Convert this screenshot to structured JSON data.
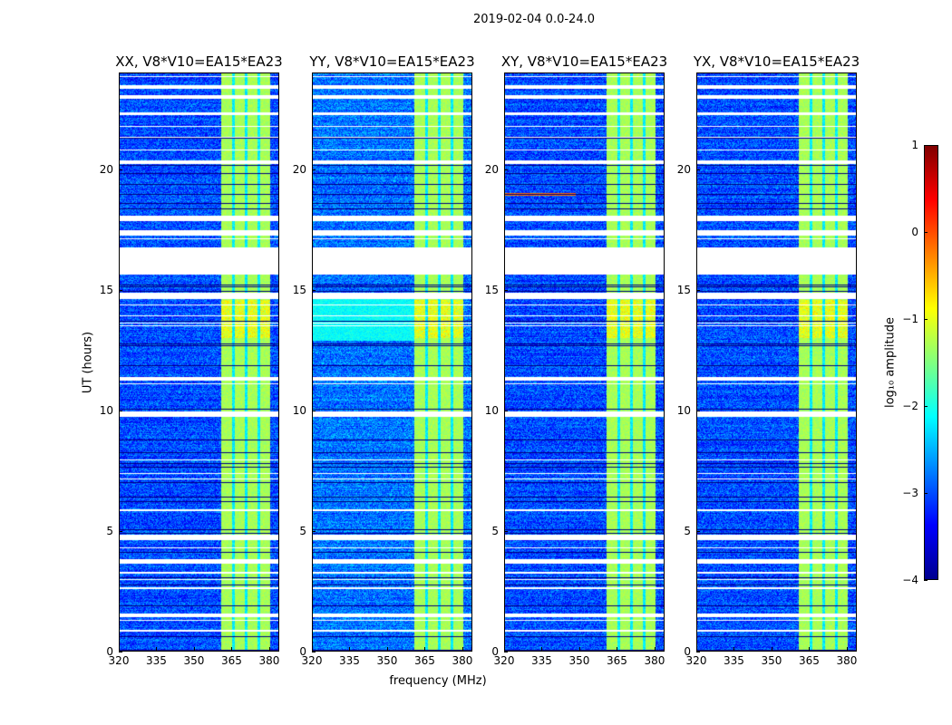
{
  "chart_data": {
    "type": "heatmap",
    "title": "2019-02-04 0.0-24.0",
    "xlabel": "frequency (MHz)",
    "ylabel": "UT (hours)",
    "xlim": [
      320,
      384
    ],
    "ylim": [
      0,
      24
    ],
    "xticks": [
      "320",
      "335",
      "350",
      "365",
      "380"
    ],
    "xtick_values": [
      320,
      335,
      350,
      365,
      380
    ],
    "yticks": [
      "0",
      "5",
      "10",
      "15",
      "20"
    ],
    "ytick_values": [
      0,
      5,
      10,
      15,
      20
    ],
    "panels": [
      {
        "title": "XX, V8*V10=EA15*EA23",
        "base": -3.0,
        "cyan_block": false,
        "rfi_line": false
      },
      {
        "title": "YY, V8*V10=EA15*EA23",
        "base": -2.8,
        "cyan_block": true,
        "rfi_line": false
      },
      {
        "title": "XY, V8*V10=EA15*EA23",
        "base": -3.0,
        "cyan_block": false,
        "rfi_line": true
      },
      {
        "title": "YX, V8*V10=EA15*EA23",
        "base": -3.0,
        "cyan_block": false,
        "rfi_line": false
      }
    ],
    "band_MHz": [
      360.4,
      380
    ],
    "band_level": -1.0,
    "flagged_hours": [
      [
        15.7,
        16.8
      ],
      [
        17.3,
        17.5
      ],
      [
        17.9,
        18.1
      ],
      [
        14.7,
        14.9
      ],
      [
        9.8,
        10.0
      ],
      [
        4.7,
        4.9
      ],
      [
        3.7,
        3.85
      ],
      [
        2.65,
        2.7
      ],
      [
        1.5,
        1.6
      ],
      [
        20.3,
        20.4
      ],
      [
        22.3,
        22.4
      ],
      [
        23.4,
        23.5
      ],
      [
        23.0,
        23.1
      ],
      [
        11.3,
        11.4
      ],
      [
        5.9,
        5.95
      ],
      [
        0.9,
        0.95
      ],
      [
        3.3,
        3.35
      ]
    ],
    "colorbar": {
      "label": "log₁₀ amplitude",
      "range": [
        -4,
        1
      ],
      "ticks": [
        "1",
        "0",
        "−1",
        "−2",
        "−3",
        "−4"
      ],
      "tick_values": [
        1,
        0,
        -1,
        -2,
        -3,
        -4
      ],
      "colormap": "jet"
    }
  }
}
